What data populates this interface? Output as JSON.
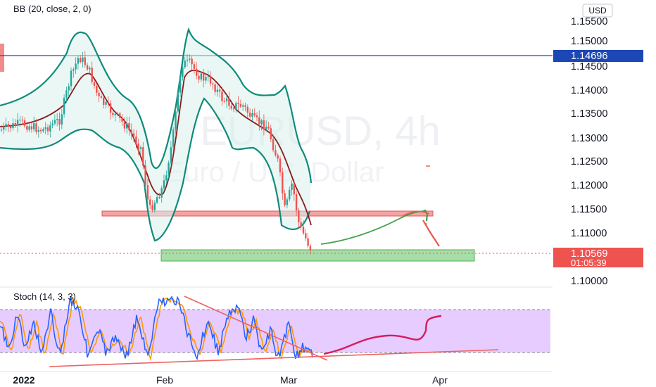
{
  "chart_data": {
    "type": "candlestick",
    "symbol_watermark": "EURUSD, 4h",
    "description_watermark": "Euro / U.S. Dollar",
    "currency": "USD",
    "indicator_label": "BB (20, close, 2, 0)",
    "stoch_label": "Stoch (14, 3, 3)",
    "y_ticks": [
      "1.15500",
      "1.15000",
      "1.14500",
      "1.14000",
      "1.13500",
      "1.13000",
      "1.12500",
      "1.12000",
      "1.11500",
      "1.11000",
      "1.10000"
    ],
    "x_ticks": [
      "2022",
      "Feb",
      "Mar",
      "Apr"
    ],
    "horizontal_line_price": "1.14696",
    "last_price": "1.10569",
    "countdown": "01:05:39",
    "colors": {
      "up": "#26a69a",
      "down": "#ef5350",
      "bb_band": "#0f8b7a",
      "bb_basis": "#8b1a1a",
      "hline": "#1c47b4",
      "resistance_zone": "#f28b8b",
      "support_zone": "#8fd18f",
      "stoch_k": "#2962ff",
      "stoch_d": "#ff9800",
      "stoch_bg": "#e6ccff"
    }
  }
}
